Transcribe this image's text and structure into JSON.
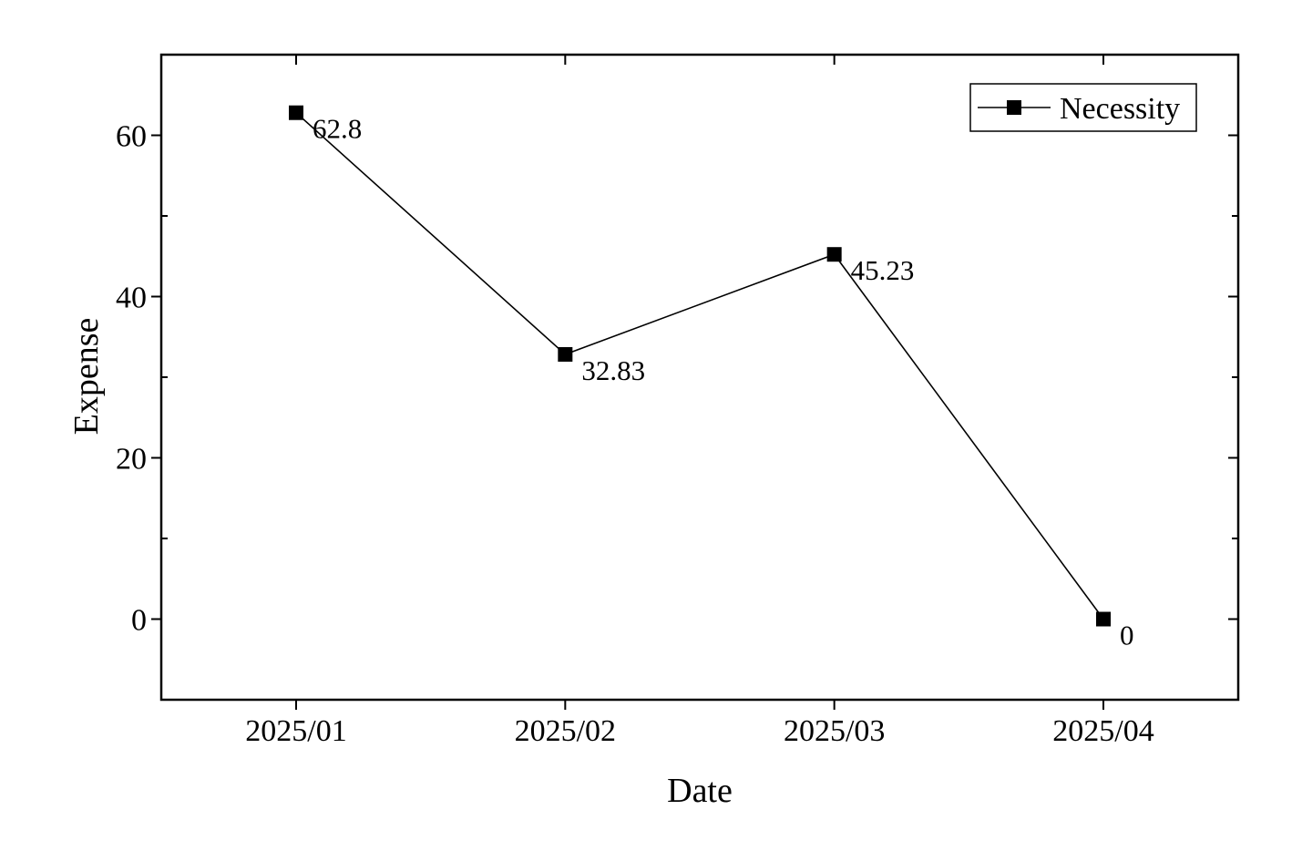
{
  "chart_data": {
    "type": "line",
    "title": "",
    "xlabel": "Date",
    "ylabel": "Expense",
    "categories": [
      "2025/01",
      "2025/02",
      "2025/03",
      "2025/04"
    ],
    "series": [
      {
        "name": "Necessity",
        "values": [
          62.8,
          32.83,
          45.23,
          0
        ],
        "data_labels": [
          "62.8",
          "32.83",
          "45.23",
          "0"
        ],
        "marker": "square",
        "color": "#000000"
      }
    ],
    "ylim": [
      -10,
      70
    ],
    "yticks": [
      0,
      20,
      40,
      60
    ],
    "y_minor_ticks": [
      -10,
      10,
      30,
      50,
      70
    ],
    "grid": false,
    "legend": "top-right",
    "colors": {
      "line": "#000000",
      "marker": "#000000",
      "axis": "#000000",
      "background": "#ffffff"
    }
  }
}
